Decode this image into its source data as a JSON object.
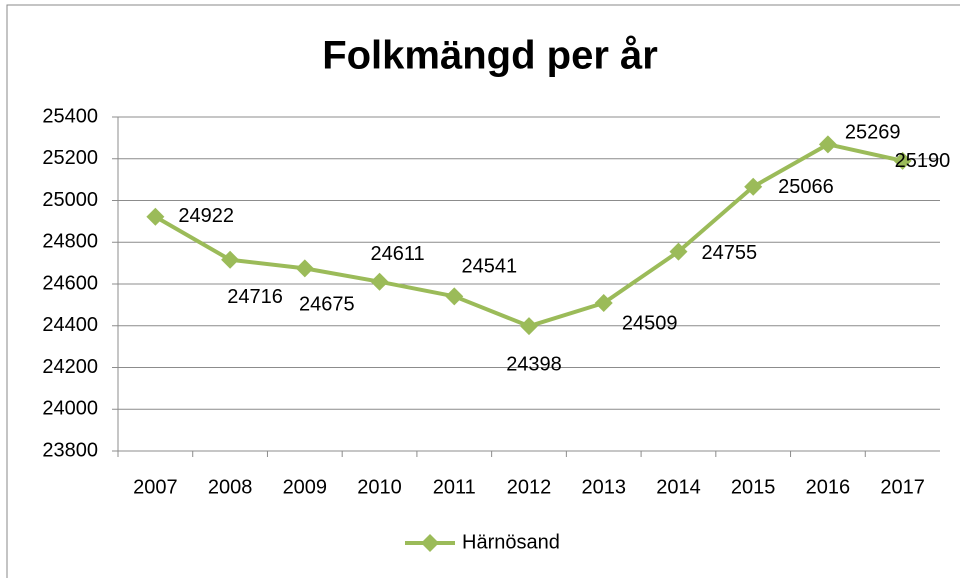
{
  "chart_data": {
    "type": "line",
    "title": "Folkmängd per år",
    "categories": [
      "2007",
      "2008",
      "2009",
      "2010",
      "2011",
      "2012",
      "2013",
      "2014",
      "2015",
      "2016",
      "2017"
    ],
    "series": [
      {
        "name": "Härnösand",
        "color": "#9bbb59",
        "values": [
          24922,
          24716,
          24675,
          24611,
          24541,
          24398,
          24509,
          24755,
          25066,
          25269,
          25190
        ]
      }
    ],
    "ylim": [
      23800,
      25400
    ],
    "yticks": [
      23800,
      24000,
      24200,
      24400,
      24600,
      24800,
      25000,
      25200,
      25400
    ],
    "grid": true,
    "legend": "bottom"
  }
}
